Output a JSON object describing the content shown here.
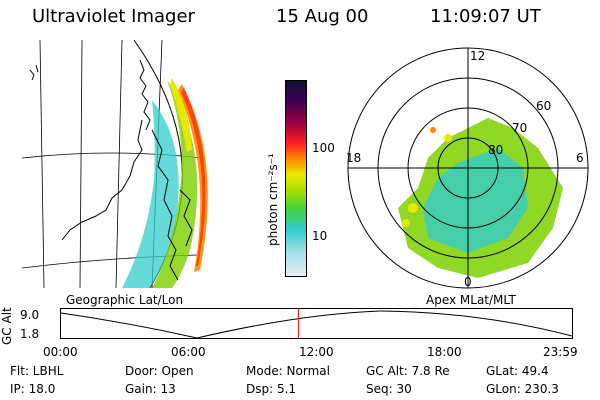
{
  "header": {
    "title": "Ultraviolet Imager",
    "date": "15 Aug 00",
    "time": "11:09:07 UT"
  },
  "colorbar": {
    "label": "photon cm⁻²s⁻¹",
    "ticks": [
      "100",
      "10"
    ]
  },
  "polar": {
    "mlt_labels": {
      "top": "12",
      "left": "18",
      "right": "6",
      "bottom": "0"
    },
    "lat_labels": [
      "60",
      "70",
      "80"
    ]
  },
  "captions": {
    "left": "Geographic Lat/Lon",
    "right": "Apex MLat/MLT"
  },
  "altitude_plot": {
    "ylabel": "GC Alt",
    "yticks": [
      "9.0",
      "1.8"
    ],
    "xticks": [
      "00:00",
      "06:00",
      "12:00",
      "18:00",
      "23:59"
    ],
    "current_time_marker_hours": 11.15
  },
  "status": {
    "flt": "Flt: LBHL",
    "ip": "IP: 18.0",
    "door": "Door: Open",
    "gain": "Gain: 13",
    "mode": "Mode: Normal",
    "dsp": "Dsp:    5.1",
    "gc_alt": "GC Alt: 7.8 Re",
    "seq": "Seq: 30",
    "glat": "GLat:  49.4",
    "glon": "GLon: 230.3"
  },
  "colors": {
    "marker": "#ff0000",
    "aurora_green": "#7cd000",
    "aurora_cyan": "#33cccc",
    "aurora_yellow": "#e8e800",
    "aurora_orange": "#ff8800"
  }
}
